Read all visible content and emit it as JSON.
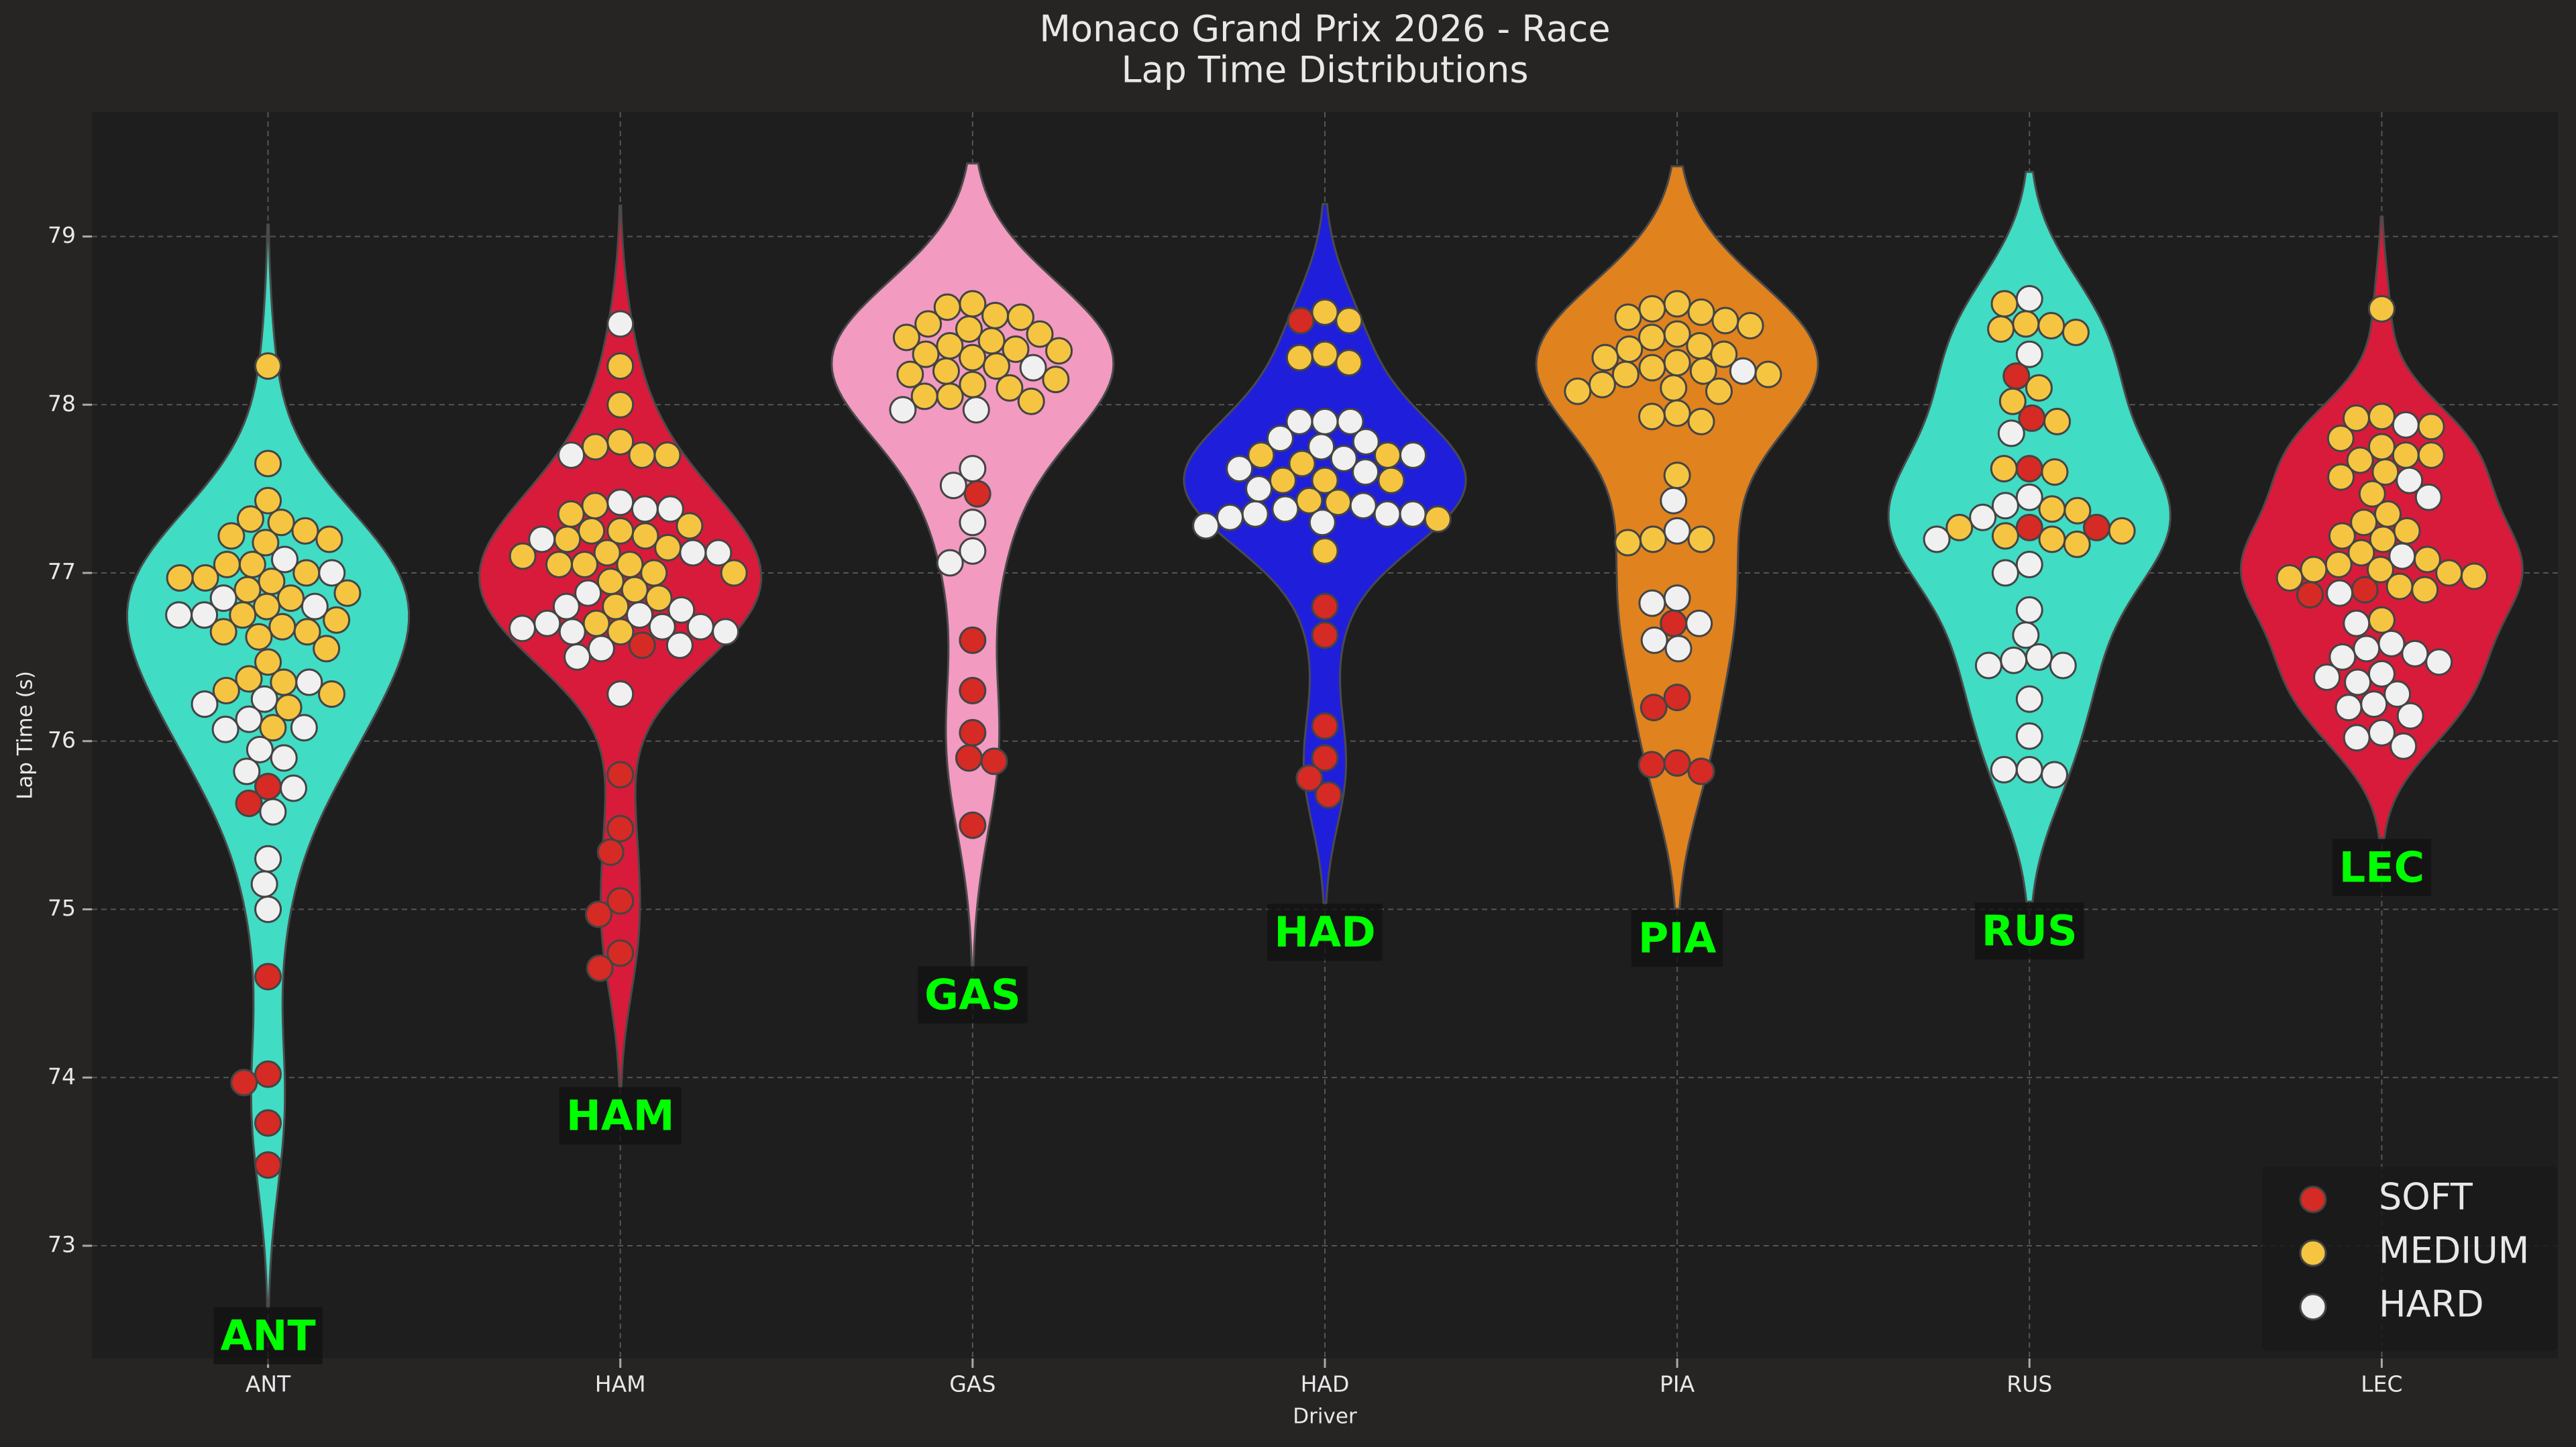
{
  "chart_data": {
    "type": "violin",
    "title": "Monaco Grand Prix 2026 - Race",
    "subtitle": "Lap Time Distributions",
    "xlabel": "Driver",
    "ylabel": "Lap Time (s)",
    "categories": [
      "ANT",
      "HAM",
      "GAS",
      "HAD",
      "PIA",
      "RUS",
      "LEC"
    ],
    "violin_colors": [
      "#40dcc4",
      "#d81b3a",
      "#f29ac0",
      "#1f1fdb",
      "#e0821e",
      "#40dcc4",
      "#d81b3a"
    ],
    "label_color": "#00ff00",
    "ylim": [
      72.33,
      79.74
    ],
    "yticks": [
      73,
      74,
      75,
      76,
      77,
      78,
      79
    ],
    "grid": true,
    "legend": "lower right",
    "series": [
      {
        "name": "SOFT",
        "color": "#d62a24",
        "values": [
          [
            75.63,
            75.73,
            74.6,
            74.02,
            73.97,
            73.73,
            73.48
          ],
          [
            75.8,
            75.48,
            75.34,
            75.05,
            74.97,
            74.74,
            74.65,
            76.57
          ],
          [
            77.47,
            76.6,
            76.3,
            76.05,
            75.9,
            75.88,
            75.5
          ],
          [
            78.5,
            76.8,
            76.63,
            76.09,
            75.9,
            75.78,
            75.68
          ],
          [
            76.7,
            76.26,
            76.2,
            75.87,
            75.86,
            75.82
          ],
          [
            78.17,
            77.92,
            77.62,
            77.27,
            77.27
          ],
          [
            76.9,
            76.87
          ]
        ]
      },
      {
        "name": "MEDIUM",
        "color": "#f5c542",
        "values": [
          [
            78.23,
            77.65,
            77.43,
            77.3,
            77.25,
            77.22,
            77.2,
            77.18,
            77.05,
            77.05,
            77.0,
            76.97,
            76.95,
            76.9,
            76.85,
            76.8,
            76.75,
            76.72,
            76.68,
            76.65,
            76.65,
            76.62,
            76.55,
            76.47,
            76.37,
            76.35,
            76.3,
            76.28,
            76.2,
            76.08,
            77.32,
            76.97,
            76.88
          ],
          [
            78.23,
            78.0,
            77.78,
            77.75,
            77.7,
            77.7,
            77.4,
            77.35,
            77.25,
            77.25,
            77.2,
            77.15,
            77.12,
            77.1,
            77.05,
            77.05,
            77.05,
            77.0,
            77.0,
            76.95,
            76.9,
            76.85,
            76.8,
            76.7,
            76.65,
            77.28,
            77.22
          ],
          [
            78.6,
            78.58,
            78.53,
            78.52,
            78.48,
            78.45,
            78.42,
            78.4,
            78.38,
            78.35,
            78.33,
            78.32,
            78.3,
            78.28,
            78.23,
            78.2,
            78.18,
            78.15,
            78.12,
            78.1,
            78.05,
            78.05,
            78.02
          ],
          [
            78.55,
            78.5,
            78.3,
            78.28,
            78.25,
            77.7,
            77.7,
            77.65,
            77.55,
            77.55,
            77.55,
            77.42,
            77.32,
            77.13,
            77.43
          ],
          [
            78.6,
            78.57,
            78.55,
            78.5,
            78.47,
            78.42,
            78.4,
            78.33,
            78.3,
            78.28,
            78.25,
            78.22,
            78.2,
            78.18,
            78.18,
            78.12,
            78.1,
            78.08,
            78.08,
            77.95,
            77.93,
            77.9,
            77.58,
            77.2,
            77.18,
            77.2,
            78.52,
            78.35
          ],
          [
            78.6,
            78.48,
            78.47,
            78.45,
            78.43,
            78.1,
            78.02,
            77.9,
            77.62,
            77.6,
            77.38,
            77.37,
            77.27,
            77.25,
            77.22,
            77.2,
            77.17
          ],
          [
            78.57,
            77.93,
            77.92,
            77.87,
            77.8,
            77.75,
            77.7,
            77.7,
            77.67,
            77.6,
            77.57,
            77.47,
            77.35,
            77.3,
            77.25,
            77.22,
            77.2,
            77.12,
            77.08,
            77.05,
            77.02,
            77.02,
            77.0,
            76.98,
            76.97,
            76.92,
            76.9,
            76.72
          ]
        ]
      },
      {
        "name": "HARD",
        "color": "#f0f0f0",
        "values": [
          [
            77.08,
            76.85,
            76.8,
            76.75,
            77.0,
            76.35,
            76.25,
            76.22,
            76.13,
            76.08,
            76.07,
            75.95,
            75.9,
            75.82,
            75.72,
            75.58,
            75.3,
            75.15,
            75.0,
            76.75
          ],
          [
            78.48,
            77.7,
            77.42,
            77.38,
            77.38,
            77.2,
            77.12,
            77.12,
            76.88,
            76.8,
            76.75,
            76.7,
            76.68,
            76.68,
            76.67,
            76.65,
            76.65,
            76.57,
            76.55,
            76.5,
            76.28,
            76.78
          ],
          [
            78.22,
            77.97,
            77.97,
            77.62,
            77.52,
            77.3,
            77.13,
            77.06
          ],
          [
            77.9,
            77.9,
            77.9,
            77.8,
            77.78,
            77.75,
            77.7,
            77.68,
            77.62,
            77.6,
            77.5,
            77.4,
            77.38,
            77.35,
            77.35,
            77.33,
            77.3,
            77.28,
            77.35
          ],
          [
            78.2,
            77.43,
            77.25,
            76.85,
            76.82,
            76.7,
            76.6,
            76.55
          ],
          [
            78.63,
            78.3,
            77.83,
            77.45,
            77.4,
            77.33,
            77.2,
            77.05,
            77.0,
            76.78,
            76.63,
            76.5,
            76.48,
            76.45,
            76.45,
            76.25,
            76.03,
            75.83,
            75.83,
            75.8
          ],
          [
            77.88,
            77.55,
            77.45,
            77.1,
            76.88,
            76.7,
            76.58,
            76.55,
            76.52,
            76.5,
            76.47,
            76.4,
            76.38,
            76.35,
            76.28,
            76.22,
            76.2,
            76.15,
            76.05,
            76.02,
            75.97
          ]
        ]
      }
    ]
  }
}
